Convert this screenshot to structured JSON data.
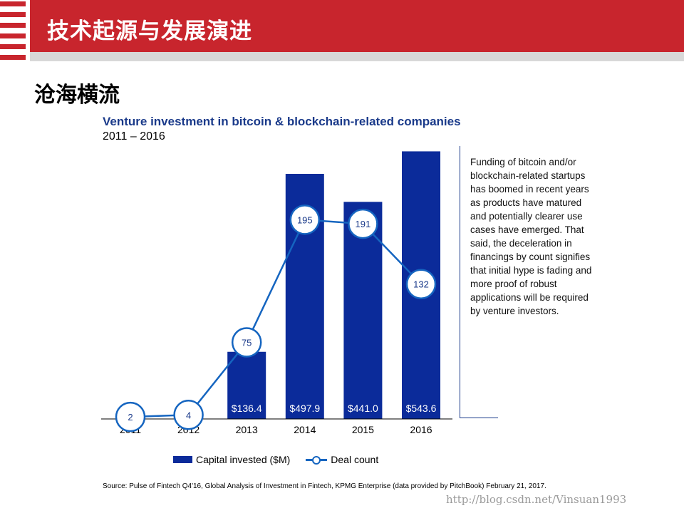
{
  "header": {
    "title": "技术起源与发展演进"
  },
  "section_title": "沧海横流",
  "note": "Funding of bitcoin and/or blockchain-related startups has boomed in recent years as products have matured and potentially clearer use cases have emerged. That said, the deceleration in financings by count signifies that initial hype is fading and more proof of robust applications will be required by venture investors.",
  "source": "Source: Pulse of Fintech Q4'16, Global Analysis of Investment in Fintech, KPMG Enterprise (data provided by PitchBook) February 21, 2017.",
  "watermark": "http://blog.csdn.net/Vinsuan1993",
  "colors": {
    "header_red": "#c8252d",
    "bar_navy": "#0b2b9a",
    "line_blue": "#1565c0",
    "title_blue": "#1a3a8a"
  },
  "chart_data": {
    "type": "bar",
    "title": "Venture investment in bitcoin & blockchain-related companies",
    "subtitle": "2011 – 2016",
    "categories": [
      "2011",
      "2012",
      "2013",
      "2014",
      "2015",
      "2016"
    ],
    "series": [
      {
        "name": "Capital invested ($M)",
        "type": "bar",
        "values": [
          null,
          null,
          136.4,
          497.9,
          441.0,
          543.6
        ],
        "labels": [
          "",
          "",
          "$136.4",
          "$497.9",
          "$441.0",
          "$543.6"
        ]
      },
      {
        "name": "Deal count",
        "type": "line",
        "values": [
          2,
          4,
          75,
          195,
          191,
          132
        ]
      }
    ],
    "bar_axis_range": [
      0,
      550
    ],
    "line_axis_range": [
      0,
      265
    ],
    "grid": false,
    "legend_position": "bottom"
  }
}
